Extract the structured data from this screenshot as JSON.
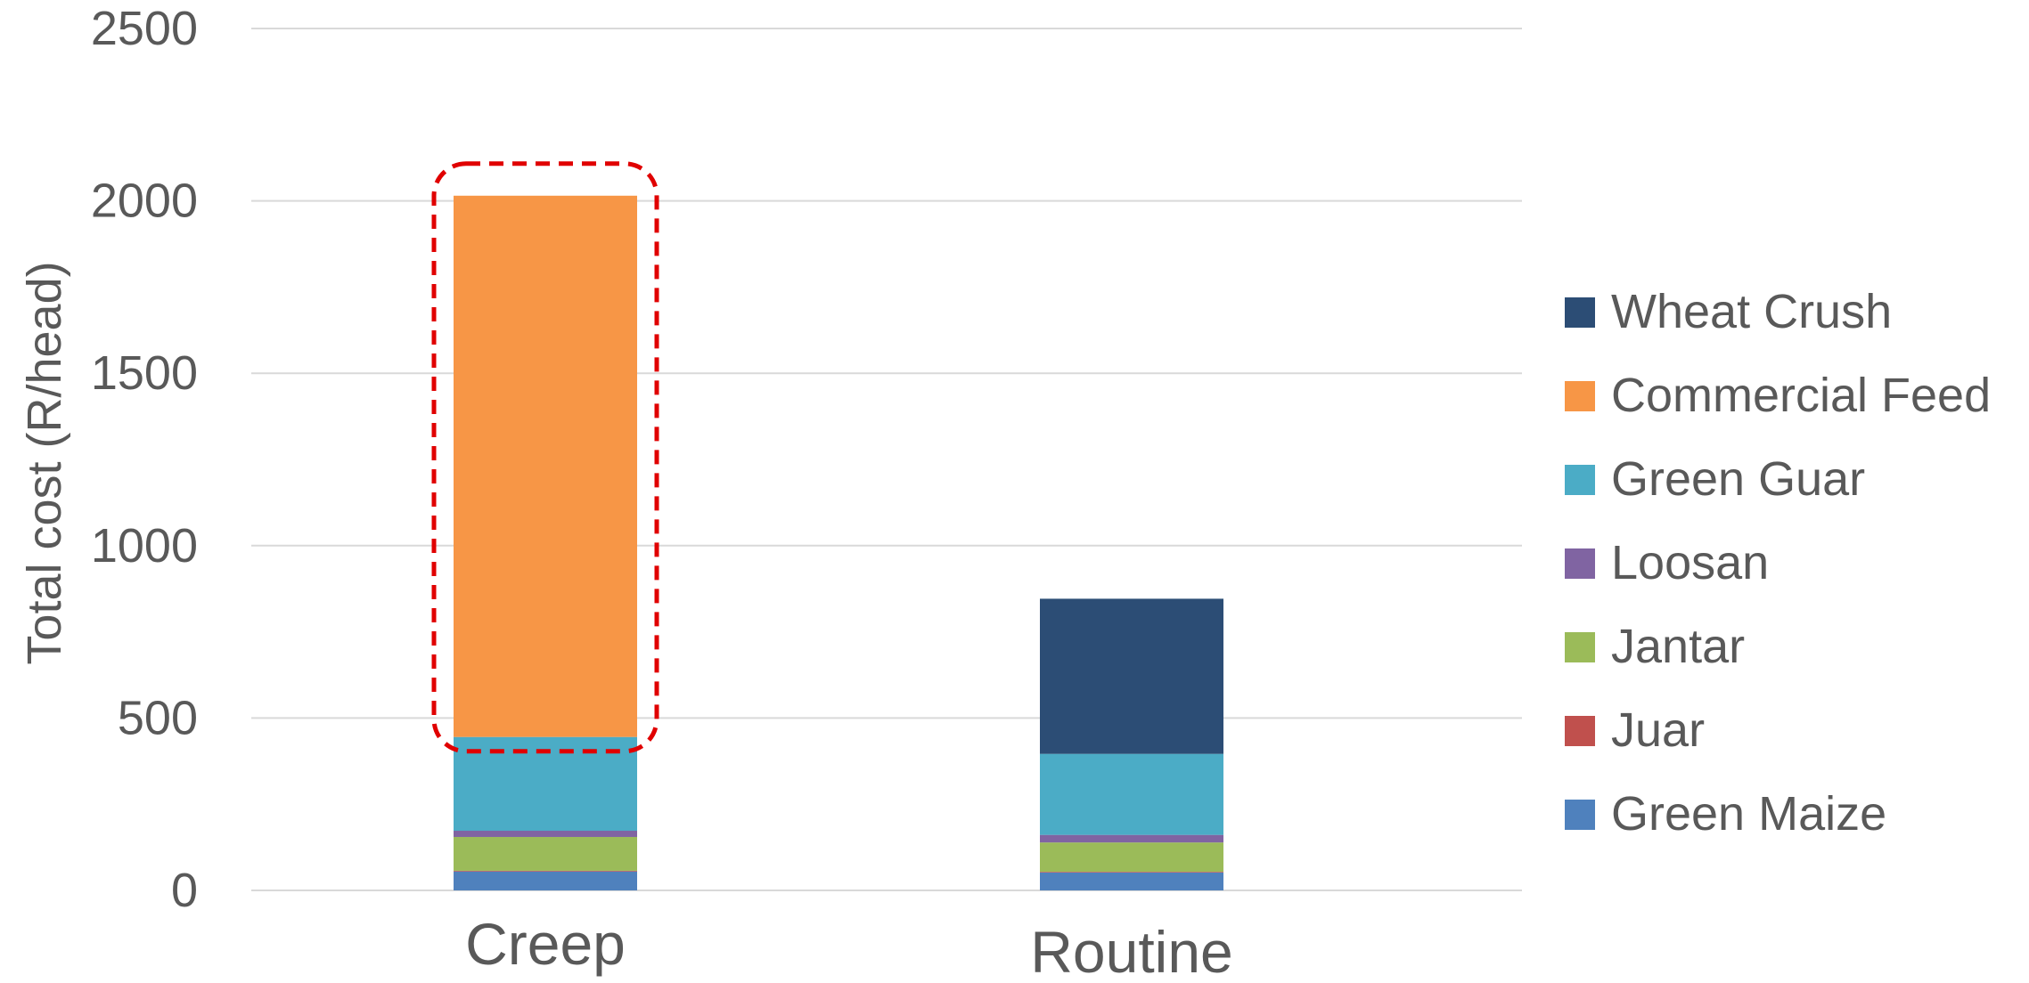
{
  "chart_data": {
    "type": "bar",
    "stacked": true,
    "title": "",
    "xlabel": "",
    "ylabel": "Total cost (R/head)",
    "ylim": [
      0,
      2500
    ],
    "yticks": [
      0,
      500,
      1000,
      1500,
      2000,
      2500
    ],
    "ytick_labels": [
      "0",
      "500",
      "1000",
      "1500",
      "2000",
      "2500"
    ],
    "grid": true,
    "legend_position": "right",
    "categories": [
      "Creep",
      "Routine"
    ],
    "series": [
      {
        "name": "Green Maize",
        "color": "#4F81BD",
        "values": [
          55,
          52
        ]
      },
      {
        "name": "Juar",
        "color": "#C0504D",
        "values": [
          2,
          2
        ]
      },
      {
        "name": "Jantar",
        "color": "#9BBB59",
        "values": [
          98,
          85
        ]
      },
      {
        "name": "Loosan",
        "color": "#8064A2",
        "values": [
          18,
          22
        ]
      },
      {
        "name": "Green Guar",
        "color": "#4BACC6",
        "values": [
          272,
          235
        ]
      },
      {
        "name": "Commercial Feed",
        "color": "#F79646",
        "values": [
          1570,
          0
        ]
      },
      {
        "name": "Wheat Crush",
        "color": "#2C4D75",
        "values": [
          0,
          450
        ]
      }
    ],
    "annotations": [
      {
        "type": "dashed-rounded-box",
        "target": "Creep / Commercial Feed",
        "color": "#E00000"
      }
    ]
  }
}
